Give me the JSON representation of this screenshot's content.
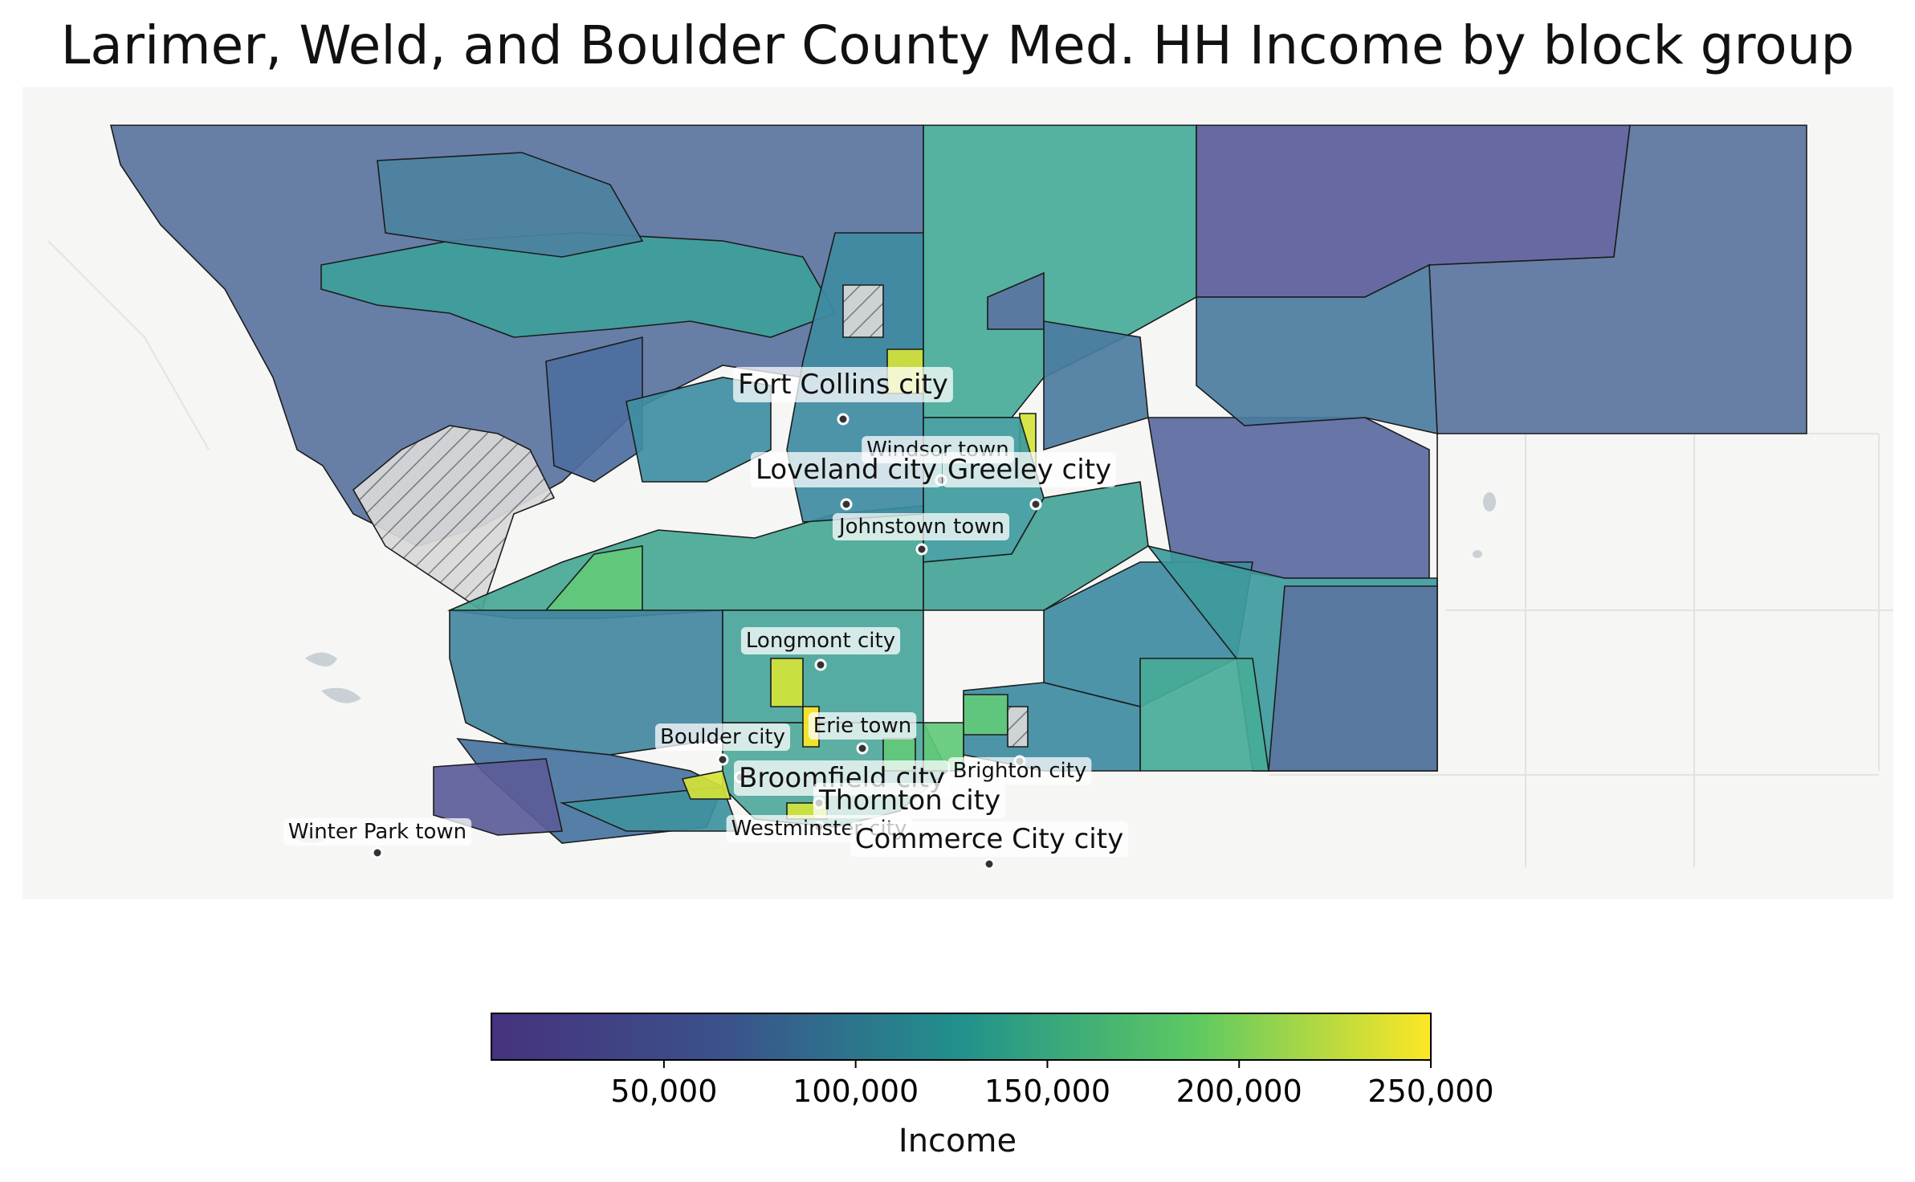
{
  "title": "Larimer, Weld, and Boulder County Med. HH Income by block group",
  "colorbar": {
    "label": "Income",
    "min": 5000,
    "max": 250000,
    "ticks": [
      {
        "value": 50000,
        "label": "50,000"
      },
      {
        "value": 100000,
        "label": "100,000"
      },
      {
        "value": 150000,
        "label": "150,000"
      },
      {
        "value": 200000,
        "label": "200,000"
      },
      {
        "value": 250000,
        "label": "250,000"
      }
    ],
    "colormap": [
      "#440154",
      "#3b528b",
      "#21918c",
      "#5ec962",
      "#fde725"
    ]
  },
  "cities": [
    {
      "name": "Fort Collins city",
      "size": "large"
    },
    {
      "name": "Windsor town",
      "size": "small"
    },
    {
      "name": "Loveland city",
      "size": "large"
    },
    {
      "name": "Greeley city",
      "size": "large"
    },
    {
      "name": "Johnstown town",
      "size": "small"
    },
    {
      "name": "Longmont city",
      "size": "small"
    },
    {
      "name": "Erie town",
      "size": "small"
    },
    {
      "name": "Boulder city",
      "size": "small"
    },
    {
      "name": "Broomfield city",
      "size": "large"
    },
    {
      "name": "Brighton city",
      "size": "small"
    },
    {
      "name": "Thornton city",
      "size": "large"
    },
    {
      "name": "Westminster city",
      "size": "small"
    },
    {
      "name": "Commerce City city",
      "size": "large"
    },
    {
      "name": "Winter Park town",
      "size": "small"
    }
  ]
}
